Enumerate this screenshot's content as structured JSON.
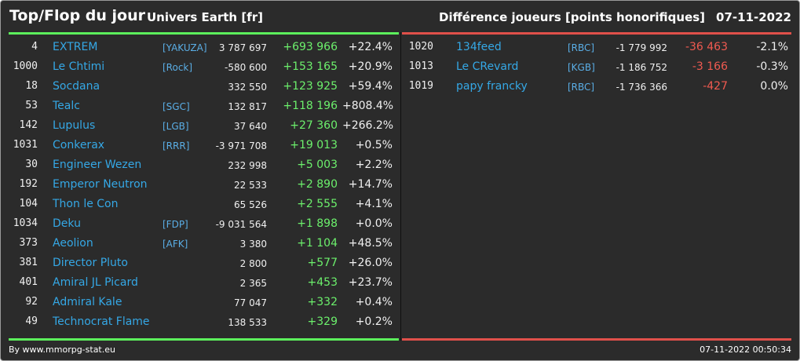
{
  "header": {
    "title": "Top/Flop du jour",
    "subtitle": "Univers Earth [fr]",
    "right_title": "Différence joueurs [points honorifiques]",
    "date": "07-11-2022"
  },
  "colors": {
    "top_accent": "#5cef5c",
    "flop_accent": "#e0504a",
    "name": "#35a8e6",
    "background": "#2b2b2b"
  },
  "top": [
    {
      "rank": "4",
      "name": "EXTREM",
      "alliance": "[YAKUZA]",
      "points": "3 787 697",
      "diff": "+693 966",
      "pct": "+22.4%"
    },
    {
      "rank": "1000",
      "name": "Le Chtimi",
      "alliance": "[Rock]",
      "points": "-580 600",
      "diff": "+153 165",
      "pct": "+20.9%"
    },
    {
      "rank": "18",
      "name": "Socdana",
      "alliance": "",
      "points": "332 550",
      "diff": "+123 925",
      "pct": "+59.4%"
    },
    {
      "rank": "53",
      "name": "Tealc",
      "alliance": "[SGC]",
      "points": "132 817",
      "diff": "+118 196",
      "pct": "+808.4%"
    },
    {
      "rank": "142",
      "name": "Lupulus",
      "alliance": "[LGB]",
      "points": "37 640",
      "diff": "+27 360",
      "pct": "+266.2%"
    },
    {
      "rank": "1031",
      "name": "Conkerax",
      "alliance": "[RRR]",
      "points": "-3 971 708",
      "diff": "+19 013",
      "pct": "+0.5%"
    },
    {
      "rank": "30",
      "name": "Engineer Wezen",
      "alliance": "",
      "points": "232 998",
      "diff": "+5 003",
      "pct": "+2.2%"
    },
    {
      "rank": "192",
      "name": "Emperor Neutron",
      "alliance": "",
      "points": "22 533",
      "diff": "+2 890",
      "pct": "+14.7%"
    },
    {
      "rank": "104",
      "name": "Thon le Con",
      "alliance": "",
      "points": "65 526",
      "diff": "+2 555",
      "pct": "+4.1%"
    },
    {
      "rank": "1034",
      "name": "Deku",
      "alliance": "[FDP]",
      "points": "-9 031 564",
      "diff": "+1 898",
      "pct": "+0.0%"
    },
    {
      "rank": "373",
      "name": "Aeolion",
      "alliance": "[AFK]",
      "points": "3 380",
      "diff": "+1 104",
      "pct": "+48.5%"
    },
    {
      "rank": "381",
      "name": "Director Pluto",
      "alliance": "",
      "points": "2 800",
      "diff": "+577",
      "pct": "+26.0%"
    },
    {
      "rank": "401",
      "name": "Amiral JL Picard",
      "alliance": "",
      "points": "2 365",
      "diff": "+453",
      "pct": "+23.7%"
    },
    {
      "rank": "92",
      "name": "Admiral Kale",
      "alliance": "",
      "points": "77 047",
      "diff": "+332",
      "pct": "+0.4%"
    },
    {
      "rank": "49",
      "name": "Technocrat Flame",
      "alliance": "",
      "points": "138 533",
      "diff": "+329",
      "pct": "+0.2%"
    }
  ],
  "flop": [
    {
      "rank": "1020",
      "name": "134feed",
      "alliance": "[RBC]",
      "points": "-1 779 992",
      "diff": "-36 463",
      "pct": "-2.1%"
    },
    {
      "rank": "1013",
      "name": "Le CRevard",
      "alliance": "[KGB]",
      "points": "-1 186 752",
      "diff": "-3 166",
      "pct": "-0.3%"
    },
    {
      "rank": "1019",
      "name": "papy francky",
      "alliance": "[RBC]",
      "points": "-1 736 366",
      "diff": "-427",
      "pct": "0.0%"
    }
  ],
  "footer": {
    "credit": "By www.mmorpg-stat.eu",
    "timestamp": "07-11-2022 00:50:34"
  }
}
